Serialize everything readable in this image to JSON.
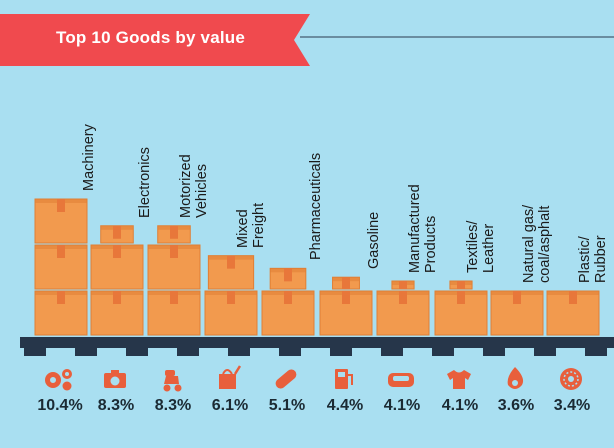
{
  "title": "Top 10 Goods by value",
  "colors": {
    "background": "#a9dff1",
    "banner": "#f04a4e",
    "box": "#f29a4e",
    "box_dark": "#e07f35",
    "box_tape": "#e8773a",
    "pallet": "#26364a",
    "icon": "#e85f3c",
    "text": "#1b2a33"
  },
  "chart_data": {
    "type": "bar",
    "title": "Top 10 Goods by value",
    "unit": "%",
    "categories": [
      "Machinery",
      "Electronics",
      "Motorized Vehicles",
      "Mixed Freight",
      "Pharmaceuticals",
      "Gasoline",
      "Manufactured Products",
      "Textiles/ Leather",
      "Natural gas/ coal/asphalt",
      "Plastic/ Rubber"
    ],
    "label_lines": [
      [
        "Machinery"
      ],
      [
        "Electronics"
      ],
      [
        "Motorized",
        "Vehicles"
      ],
      [
        "Mixed",
        "Freight"
      ],
      [
        "Pharmaceuticals"
      ],
      [
        "Gasoline"
      ],
      [
        "Manufactured",
        "Products"
      ],
      [
        "Textiles/",
        "Leather"
      ],
      [
        "Natural gas/",
        "coal/asphalt"
      ],
      [
        "Plastic/",
        "Rubber"
      ]
    ],
    "values": [
      10.4,
      8.3,
      8.3,
      6.1,
      5.1,
      4.4,
      4.1,
      4.1,
      3.6,
      3.4
    ],
    "value_labels": [
      "10.4%",
      "8.3%",
      "8.3%",
      "6.1%",
      "5.1%",
      "4.4%",
      "4.1%",
      "4.1%",
      "3.6%",
      "3.4%"
    ],
    "icons": [
      "gears-icon",
      "camera-icon",
      "scooter-icon",
      "shopping-bag-icon",
      "pill-icon",
      "fuel-pump-icon",
      "sofa-icon",
      "tshirt-icon",
      "flame-icon",
      "tire-icon"
    ]
  }
}
